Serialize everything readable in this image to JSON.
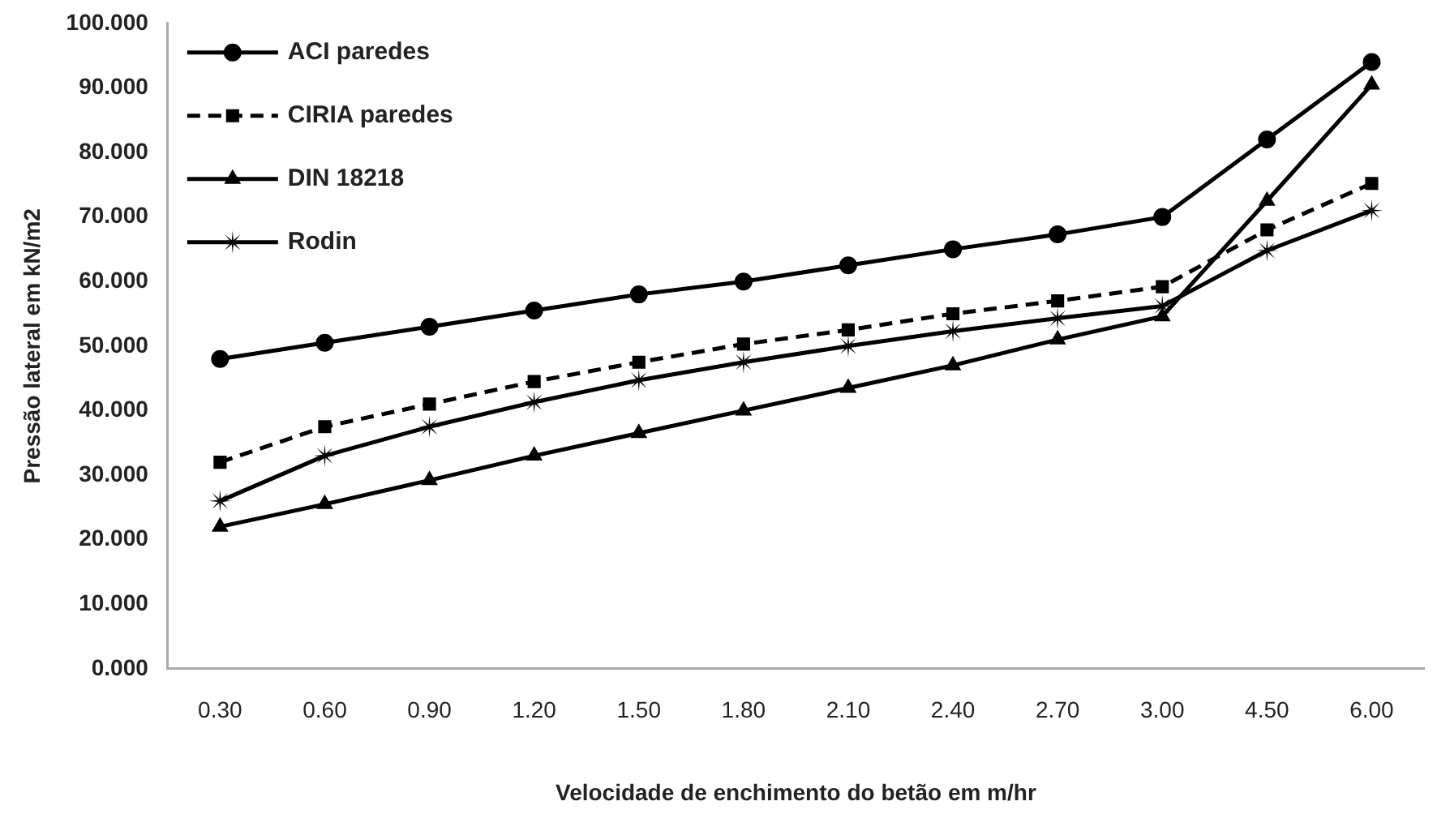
{
  "chart_data": {
    "type": "line",
    "xlabel": "Velocidade de enchimento do betão em m/hr",
    "ylabel": "Pressão lateral em kN/m2",
    "categories": [
      "0.30",
      "0.60",
      "0.90",
      "1.20",
      "1.50",
      "1.80",
      "2.10",
      "2.40",
      "2.70",
      "3.00",
      "4.50",
      "6.00"
    ],
    "ylim": [
      0,
      100
    ],
    "yticks": [
      {
        "value": 0,
        "label": "0.000"
      },
      {
        "value": 10,
        "label": "10.000"
      },
      {
        "value": 20,
        "label": "20.000"
      },
      {
        "value": 30,
        "label": "30.000"
      },
      {
        "value": 40,
        "label": "40.000"
      },
      {
        "value": 50,
        "label": "50.000"
      },
      {
        "value": 60,
        "label": "60.000"
      },
      {
        "value": 70,
        "label": "70.000"
      },
      {
        "value": 80,
        "label": "80.000"
      },
      {
        "value": 90,
        "label": "90.000"
      },
      {
        "value": 100,
        "label": "100.000"
      }
    ],
    "grid": false,
    "legend": "top left",
    "series": [
      {
        "name": "ACI paredes",
        "color": "#000000",
        "marker": "circle",
        "line_style": "solid",
        "values": [
          48,
          50.5,
          53,
          55.5,
          58,
          60,
          62.5,
          65,
          67.3,
          70,
          82,
          94
        ]
      },
      {
        "name": "CIRIA paredes",
        "color": "#000000",
        "marker": "square",
        "line_style": "dashed",
        "values": [
          32,
          37.5,
          41,
          44.5,
          47.5,
          50.3,
          52.5,
          55,
          57,
          59.2,
          68,
          75.2
        ]
      },
      {
        "name": "DIN 18218",
        "color": "#000000",
        "marker": "triangle",
        "line_style": "solid",
        "values": [
          22,
          25.5,
          29.2,
          33,
          36.5,
          40,
          43.5,
          47,
          51,
          54.6,
          72.5,
          90.5
        ]
      },
      {
        "name": "Rodin",
        "color": "#000000",
        "marker": "star",
        "line_style": "solid",
        "values": [
          26,
          33,
          37.5,
          41.3,
          44.7,
          47.5,
          50,
          52.3,
          54.3,
          56.2,
          64.8,
          71
        ]
      }
    ]
  }
}
